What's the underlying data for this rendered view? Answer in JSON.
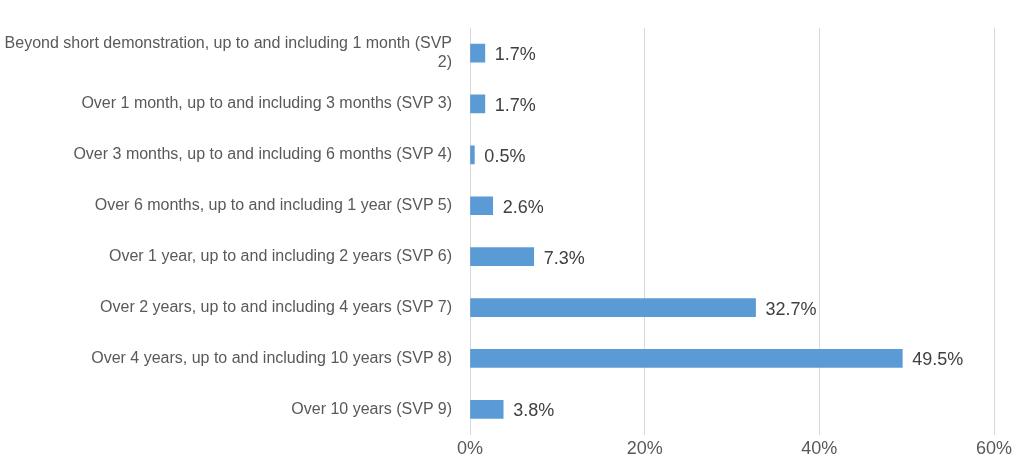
{
  "chart_data": {
    "type": "bar",
    "orientation": "horizontal",
    "categories": [
      "Beyond short demonstration, up to and including 1 month (SVP 2)",
      "Over 1 month, up to and including 3 months (SVP 3)",
      "Over 3 months, up to and including 6 months (SVP 4)",
      "Over 6 months, up to and including 1 year (SVP 5)",
      "Over 1 year, up to and including 2 years (SVP 6)",
      "Over 2 years, up to and including 4 years (SVP 7)",
      "Over 4 years, up to and including 10 years (SVP 8)",
      "Over 10 years (SVP 9)"
    ],
    "values": [
      1.7,
      1.7,
      0.5,
      2.6,
      7.3,
      32.7,
      49.5,
      3.8
    ],
    "value_labels": [
      "1.7%",
      "1.7%",
      "0.5%",
      "2.6%",
      "7.3%",
      "32.7%",
      "49.5%",
      "3.8%"
    ],
    "color": "#5b9bd5",
    "xlim": [
      0,
      60
    ],
    "xticks": [
      {
        "value": 0,
        "label": "0%"
      },
      {
        "value": 20,
        "label": "20%"
      },
      {
        "value": 40,
        "label": "40%"
      },
      {
        "value": 60,
        "label": "60%"
      }
    ],
    "grid": "x",
    "legend": false
  }
}
